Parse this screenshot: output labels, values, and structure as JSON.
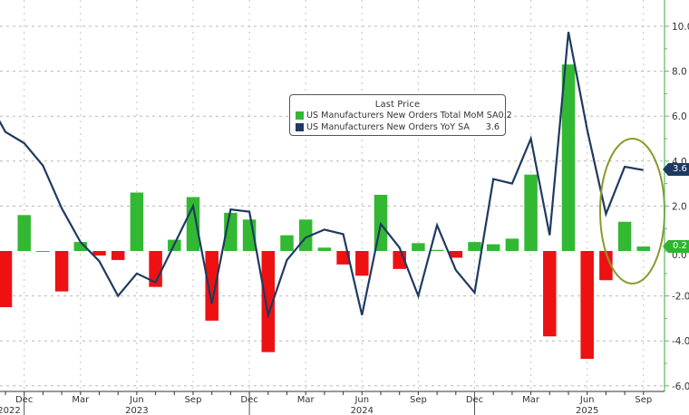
{
  "chart_data": {
    "type": "bar+line",
    "title": "",
    "legend": {
      "title": "Last Price",
      "position": "top-center",
      "entries": [
        {
          "label": "US Manufacturers New Orders Total MoM SA",
          "value": "0.2",
          "color": "#33b833",
          "type": "bar"
        },
        {
          "label": "US Manufacturers New Orders YoY SA",
          "value": "3.6",
          "color": "#1f3a60",
          "type": "line"
        }
      ]
    },
    "x": [
      "2022-10",
      "2022-11",
      "2022-12",
      "2023-01",
      "2023-02",
      "2023-03",
      "2023-04",
      "2023-05",
      "2023-06",
      "2023-07",
      "2023-08",
      "2023-09",
      "2023-10",
      "2023-11",
      "2023-12",
      "2024-01",
      "2024-02",
      "2024-03",
      "2024-04",
      "2024-05",
      "2024-06",
      "2024-07",
      "2024-08",
      "2024-09",
      "2024-10",
      "2024-11",
      "2024-12",
      "2025-01",
      "2025-02",
      "2025-03",
      "2025-04",
      "2025-05",
      "2025-06",
      "2025-07",
      "2025-08",
      "2025-09"
    ],
    "series": [
      {
        "name": "US Manufacturers New Orders Total MoM SA",
        "type": "bar",
        "positive_color": "#33b833",
        "negative_color": "#ee1111",
        "values": [
          null,
          -2.5,
          1.6,
          0.0,
          -1.8,
          0.4,
          -0.2,
          -0.4,
          2.6,
          -1.6,
          0.5,
          2.4,
          -3.1,
          1.7,
          1.4,
          -4.5,
          0.7,
          1.4,
          0.15,
          -0.6,
          -1.1,
          2.5,
          -0.8,
          0.35,
          0.05,
          -0.3,
          0.4,
          0.3,
          0.55,
          3.4,
          -3.8,
          8.3,
          -4.8,
          -1.3,
          1.3,
          0.2
        ]
      },
      {
        "name": "US Manufacturers New Orders YoY SA",
        "type": "line",
        "color": "#1f3a60",
        "values": [
          6.8,
          5.3,
          4.8,
          3.8,
          1.9,
          0.4,
          -0.45,
          -2.0,
          -1.0,
          -1.4,
          0.3,
          2.0,
          -2.35,
          1.85,
          1.75,
          -2.85,
          -0.4,
          0.6,
          0.95,
          0.75,
          -2.85,
          1.2,
          0.15,
          -2.0,
          1.15,
          -0.85,
          -1.85,
          3.2,
          3.0,
          5.0,
          0.7,
          9.75,
          5.4,
          1.65,
          3.75,
          3.6
        ]
      }
    ],
    "xlabel": "",
    "ylabel": "",
    "ylim": [
      -6,
      10
    ],
    "y_ticks": [
      "10.0",
      "8.0",
      "6.0",
      "4.0",
      "2.0",
      "-2.0",
      "-4.0",
      "-6.0"
    ],
    "y_axis_position": "right",
    "x_tick_labels": [
      {
        "month": "Dec",
        "year": "2022"
      },
      {
        "month": "Mar",
        "year": ""
      },
      {
        "month": "Jun",
        "year": "2023"
      },
      {
        "month": "Sep",
        "year": ""
      },
      {
        "month": "Dec",
        "year": ""
      },
      {
        "month": "Mar",
        "year": ""
      },
      {
        "month": "Jun",
        "year": "2024"
      },
      {
        "month": "Sep",
        "year": ""
      },
      {
        "month": "Dec",
        "year": ""
      },
      {
        "month": "Mar",
        "year": ""
      },
      {
        "month": "Jun",
        "year": "2025"
      },
      {
        "month": "Sep",
        "year": ""
      }
    ],
    "last_value_badges": [
      {
        "value": "3.6",
        "series": "line",
        "color": "#1f3a60"
      },
      {
        "value": "0.2",
        "series": "bar",
        "color": "#2fb52f"
      }
    ],
    "annotations": [
      {
        "type": "ellipse",
        "color": "#8a9a2a",
        "around": [
          "2025-07",
          "2025-08",
          "2025-09"
        ]
      }
    ],
    "grid": true
  }
}
